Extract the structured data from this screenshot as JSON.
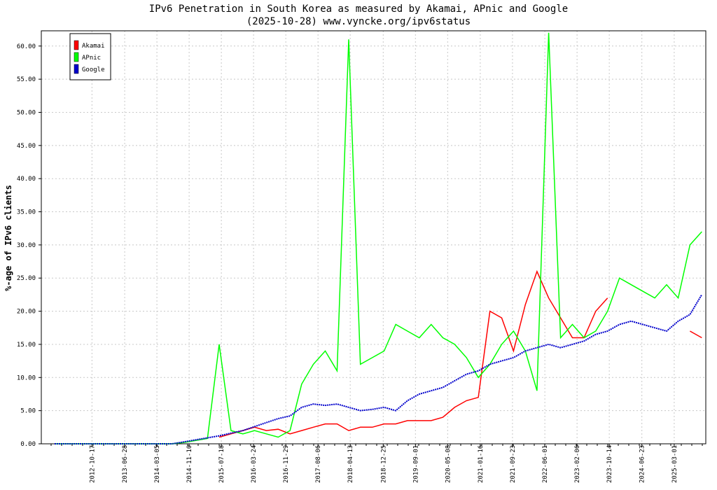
{
  "chart_data": {
    "type": "line",
    "title": "IPv6 Penetration in South Korea as measured by Akamai, APnic and Google",
    "subtitle": "(2025-10-28) www.vyncke.org/ipv6status",
    "y_label": "%-age of IPv6 clients",
    "x": [
      "2012-01-01",
      "2012-04-01",
      "2012-07-01",
      "2012-10-01",
      "2013-01-01",
      "2013-04-01",
      "2013-07-01",
      "2013-10-01",
      "2014-01-01",
      "2014-04-01",
      "2014-07-01",
      "2014-10-01",
      "2015-01-01",
      "2015-04-01",
      "2015-07-01",
      "2015-10-01",
      "2016-01-01",
      "2016-04-01",
      "2016-07-01",
      "2016-10-01",
      "2017-01-01",
      "2017-04-01",
      "2017-07-01",
      "2017-10-01",
      "2018-01-01",
      "2018-04-01",
      "2018-07-01",
      "2018-10-01",
      "2019-01-01",
      "2019-04-01",
      "2019-07-01",
      "2019-10-01",
      "2020-01-01",
      "2020-04-01",
      "2020-07-01",
      "2020-10-01",
      "2021-01-01",
      "2021-04-01",
      "2021-07-01",
      "2021-10-01",
      "2022-01-01",
      "2022-04-01",
      "2022-07-01",
      "2022-10-01",
      "2023-01-01",
      "2023-04-01",
      "2023-07-01",
      "2023-10-01",
      "2024-01-01",
      "2024-04-01",
      "2024-07-01",
      "2024-10-01",
      "2025-01-01",
      "2025-04-01",
      "2025-07-01",
      "2025-10-01"
    ],
    "xlim": [
      "2011-09-20",
      "2025-11-01"
    ],
    "xticks": [
      "2012-10-17",
      "2013-06-28",
      "2014-03-05",
      "2014-11-10",
      "2015-07-18",
      "2016-03-24",
      "2016-11-29",
      "2017-08-06",
      "2018-04-13",
      "2018-12-25",
      "2019-09-01",
      "2020-05-08",
      "2021-01-16",
      "2021-09-23",
      "2022-06-01",
      "2023-02-06",
      "2023-10-14",
      "2024-06-23",
      "2025-03-01"
    ],
    "ylim": [
      0,
      62.3
    ],
    "yticks": [
      {
        "value": 0,
        "label": "0.00"
      },
      {
        "value": 5,
        "label": "5.00"
      },
      {
        "value": 10,
        "label": "10.00"
      },
      {
        "value": 15,
        "label": "15.00"
      },
      {
        "value": 20,
        "label": "20.00"
      },
      {
        "value": 25,
        "label": "25.00"
      },
      {
        "value": 30,
        "label": "30.00"
      },
      {
        "value": 35,
        "label": "35.00"
      },
      {
        "value": 40,
        "label": "40.00"
      },
      {
        "value": 45,
        "label": "45.00"
      },
      {
        "value": 50,
        "label": "50.00"
      },
      {
        "value": 55,
        "label": "55.00"
      },
      {
        "value": 60,
        "label": "60.00"
      }
    ],
    "grid": true,
    "legend": "top-left",
    "series": [
      {
        "name": "Akamai",
        "color": "#ff0000",
        "values": [
          null,
          null,
          null,
          null,
          null,
          null,
          null,
          null,
          null,
          null,
          null,
          null,
          null,
          null,
          1.0,
          1.5,
          2.0,
          2.5,
          2.0,
          2.2,
          1.5,
          2.0,
          2.5,
          3.0,
          3.0,
          2.0,
          2.5,
          2.5,
          3.0,
          3.0,
          3.5,
          3.5,
          3.5,
          4.0,
          5.5,
          6.5,
          7.0,
          20.0,
          19.0,
          14.0,
          21.0,
          26.0,
          22.0,
          19.0,
          16.0,
          16.0,
          20.0,
          22.0,
          null,
          null,
          null,
          null,
          null,
          null,
          17.0,
          16.0
        ]
      },
      {
        "name": "APnic",
        "color": "#00ff00",
        "values": [
          0,
          0,
          0,
          0,
          0,
          0,
          0,
          0,
          0,
          0,
          0,
          0.2,
          0.5,
          0.8,
          15.0,
          2.0,
          1.5,
          2.0,
          1.5,
          1.0,
          2.0,
          9.0,
          12.0,
          14.0,
          11.0,
          61.0,
          12.0,
          13.0,
          14.0,
          18.0,
          17.0,
          16.0,
          18.0,
          16.0,
          15.0,
          13.0,
          10.0,
          12.0,
          15.0,
          17.0,
          14.0,
          8.0,
          62.0,
          16.0,
          18.0,
          16.0,
          17.0,
          20.0,
          25.0,
          24.0,
          23.0,
          22.0,
          24.0,
          22.0,
          30.0,
          32.0
        ]
      },
      {
        "name": "Google",
        "color": "#0000cc",
        "dashed": true,
        "values": [
          0,
          0,
          0,
          0,
          0,
          0,
          0,
          0,
          0,
          0,
          0,
          0.3,
          0.6,
          0.9,
          1.2,
          1.6,
          2.0,
          2.6,
          3.2,
          3.8,
          4.2,
          5.5,
          6.0,
          5.8,
          6.0,
          5.5,
          5.0,
          5.2,
          5.5,
          5.0,
          6.5,
          7.5,
          8.0,
          8.5,
          9.5,
          10.5,
          11.0,
          12.0,
          12.5,
          13.0,
          14.0,
          14.5,
          15.0,
          14.5,
          15.0,
          15.5,
          16.5,
          17.0,
          18.0,
          18.5,
          18.0,
          17.5,
          17.0,
          18.5,
          19.5,
          22.5
        ]
      }
    ]
  }
}
